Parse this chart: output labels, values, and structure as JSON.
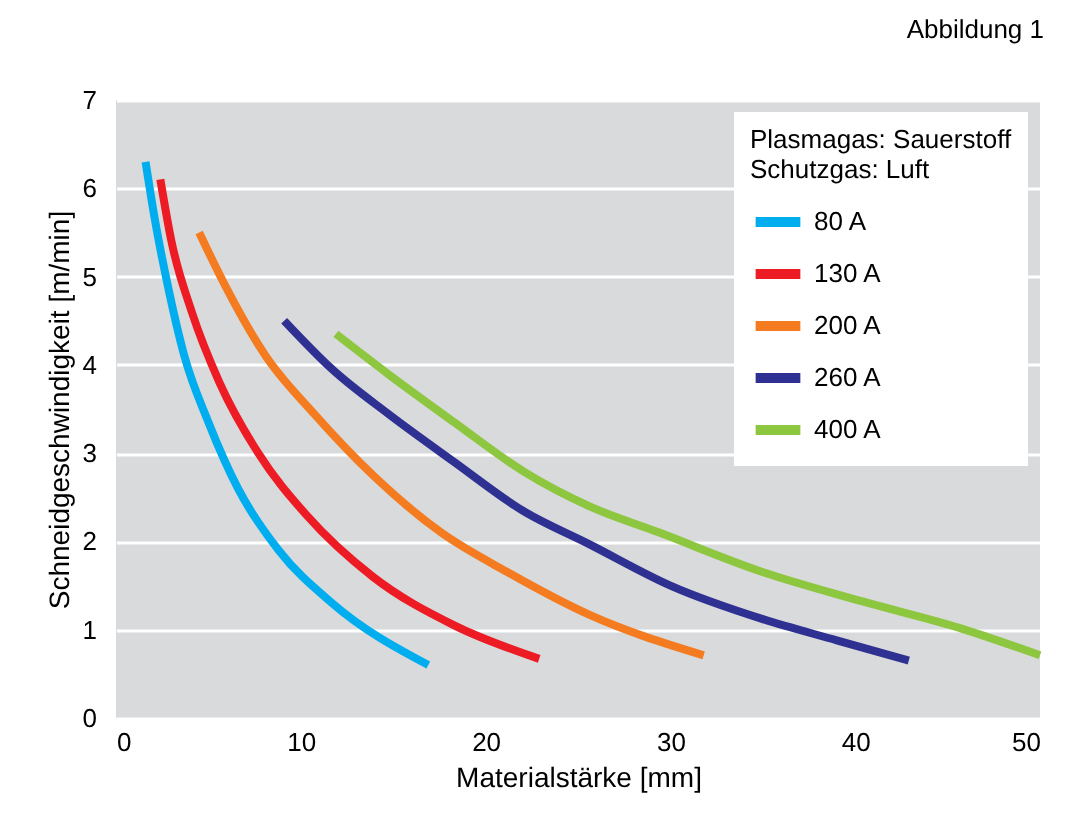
{
  "chart_data": {
    "type": "line",
    "title": "Abbildung 1",
    "xlabel": "Materialstärke [mm]",
    "ylabel": "Schneidgeschwindigkeit [m/min]",
    "legend_title": [
      "Plasmagas: Sauerstoff",
      "Schutzgas: Luft"
    ],
    "xlim": [
      0,
      50
    ],
    "ylim": [
      0,
      7
    ],
    "xticks": [
      0,
      10,
      20,
      30,
      40,
      50
    ],
    "yticks": [
      0,
      1,
      2,
      3,
      4,
      5,
      6,
      7
    ],
    "grid": "y",
    "legend": "top right",
    "marker": "none",
    "line_style": "solid",
    "series": [
      {
        "name": "80 A",
        "color": "#00aeef",
        "x": [
          1.6,
          2.1,
          2.8,
          3.7,
          5.0,
          6.6,
          8.8,
          11.7,
          16.9
        ],
        "values": [
          6.3,
          5.65,
          4.9,
          4.1,
          3.35,
          2.6,
          1.9,
          1.3,
          0.6
        ]
      },
      {
        "name": "130 A",
        "color": "#ed1c24",
        "x": [
          2.4,
          3.0,
          4.1,
          5.6,
          7.7,
          10.3,
          13.9,
          18.3,
          22.9
        ],
        "values": [
          6.1,
          5.4,
          4.6,
          3.8,
          3.0,
          2.3,
          1.6,
          1.05,
          0.67
        ]
      },
      {
        "name": "200 A",
        "color": "#f47b20",
        "x": [
          4.5,
          5.9,
          8.1,
          10.7,
          13.9,
          17.6,
          21.2,
          25.6,
          31.8
        ],
        "values": [
          5.5,
          4.9,
          4.1,
          3.45,
          2.75,
          2.1,
          1.65,
          1.17,
          0.71
        ]
      },
      {
        "name": "260 A",
        "color": "#2e3192",
        "x": [
          9.1,
          11.7,
          14.7,
          18.3,
          22.0,
          25.6,
          30.0,
          35.0,
          39.0,
          42.9
        ],
        "values": [
          4.5,
          3.95,
          3.45,
          2.9,
          2.35,
          1.97,
          1.5,
          1.12,
          0.88,
          0.65
        ]
      },
      {
        "name": "400 A",
        "color": "#8dc63f",
        "x": [
          11.9,
          14.7,
          18.3,
          22.0,
          25.6,
          29.4,
          34.9,
          40.4,
          45.8,
          50.0
        ],
        "values": [
          4.35,
          3.9,
          3.35,
          2.8,
          2.4,
          2.1,
          1.66,
          1.32,
          1.01,
          0.71
        ]
      }
    ]
  }
}
